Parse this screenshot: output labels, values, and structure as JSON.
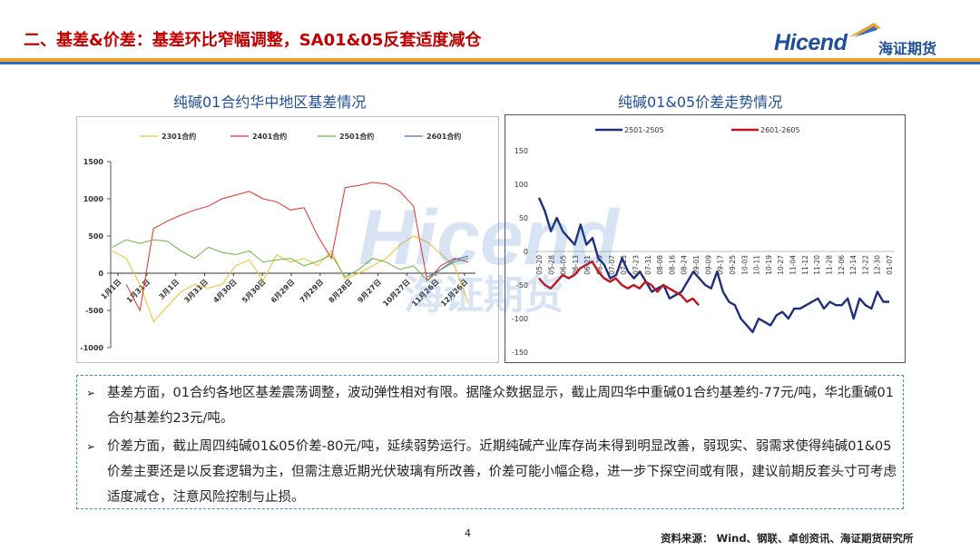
{
  "header": {
    "title": "二、基差&价差：基差环比窄幅调整，SA01&05反套适度减仓",
    "logo_en": "Hicend",
    "logo_cn": "海证期货"
  },
  "watermark": {
    "en": "Hicend",
    "cn": "海证期货"
  },
  "colors": {
    "accent_red": "#c00000",
    "brand_blue": "#1f4e9a",
    "stripe_orange": "#f0a030",
    "stripe_blue": "#2e6fc0"
  },
  "chart_data": [
    {
      "type": "line",
      "title": "纯碱01合约华中地区基差情况",
      "x_tick_labels": [
        "1月1日",
        "1月31日",
        "3月1日",
        "3月31日",
        "4月30日",
        "5月30日",
        "6月29日",
        "7月29日",
        "8月28日",
        "9月27日",
        "10月27日",
        "11月26日",
        "12月26日"
      ],
      "ylim": [
        -1000,
        1500
      ],
      "y_ticks": [
        "1500",
        "1000",
        "500",
        "0",
        "-500",
        "-1000"
      ],
      "legend_position": "top",
      "series": [
        {
          "name": "2301合约",
          "color": "#f2c12e",
          "values": [
            300,
            200,
            -150,
            -650,
            -450,
            -250,
            -150,
            -200,
            -150,
            100,
            180,
            -100,
            250,
            150,
            200,
            100,
            300,
            -80,
            0,
            100,
            200,
            380,
            500,
            420,
            260,
            100,
            -400
          ]
        },
        {
          "name": "2401合约",
          "color": "#e8302a",
          "values": [
            null,
            -150,
            -500,
            600,
            700,
            780,
            850,
            900,
            1000,
            1050,
            1100,
            1000,
            960,
            850,
            880,
            500,
            200,
            1150,
            1180,
            1220,
            1200,
            1100,
            900,
            -100,
            100,
            200,
            150
          ]
        },
        {
          "name": "2501合约",
          "color": "#6fb043",
          "values": [
            350,
            450,
            400,
            450,
            430,
            300,
            200,
            350,
            280,
            250,
            300,
            150,
            180,
            200,
            100,
            160,
            250,
            -50,
            50,
            200,
            150,
            50,
            100,
            -100,
            50,
            150,
            200
          ]
        },
        {
          "name": "2601合约",
          "color": "#3f70c0",
          "values": [
            null,
            null,
            null,
            null,
            null,
            null,
            null,
            null,
            null,
            null,
            null,
            null,
            null,
            null,
            null,
            null,
            null,
            null,
            null,
            null,
            null,
            null,
            null,
            -50,
            50,
            180,
            230
          ]
        }
      ]
    },
    {
      "type": "line",
      "title": "纯碱01&05价差走势情况",
      "x_tick_labels": [
        "05-20",
        "05-28",
        "06-05",
        "06-13",
        "06-21",
        "06-29",
        "07-07",
        "07-15",
        "07-23",
        "07-31",
        "08-08",
        "08-16",
        "08-24",
        "09-01",
        "09-09",
        "09-17",
        "09-25",
        "10-03",
        "10-11",
        "10-19",
        "10-27",
        "11-04",
        "11-12",
        "11-20",
        "11-28",
        "12-06",
        "12-14",
        "12-22",
        "12-30",
        "01-07"
      ],
      "ylim": [
        -150,
        150
      ],
      "y_ticks": [
        "150",
        "100",
        "50",
        "0",
        "-50",
        "-100",
        "-150"
      ],
      "legend_position": "top",
      "series": [
        {
          "name": "2501-2505",
          "color": "#1f2f7a",
          "values": [
            80,
            60,
            30,
            50,
            30,
            20,
            10,
            40,
            10,
            20,
            -10,
            -20,
            -40,
            -35,
            -10,
            -30,
            -40,
            -30,
            -45,
            -60,
            -55,
            -50,
            -70,
            -65,
            -60,
            -45,
            -30,
            -40,
            -50,
            -55,
            -30,
            -60,
            -75,
            -80,
            -100,
            -110,
            -120,
            -100,
            -105,
            -110,
            -95,
            -90,
            -100,
            -85,
            -85,
            -80,
            -75,
            -70,
            -85,
            -75,
            -80,
            -80,
            -70,
            -100,
            -70,
            -80,
            -85,
            -60,
            -75,
            -75
          ]
        },
        {
          "name": "2601-2605",
          "color": "#c0141e",
          "values": [
            -40,
            -50,
            -55,
            -45,
            -35,
            -40,
            -35,
            -25,
            -20,
            -15,
            -30,
            -40,
            -45,
            -40,
            -50,
            -55,
            -50,
            -55,
            -45,
            -50,
            -60,
            -50,
            -55,
            -60,
            -65,
            -75,
            -70,
            -80
          ]
        }
      ]
    }
  ],
  "bullets": [
    "基差方面，01合约各地区基差震荡调整，波动弹性相对有限。据隆众数据显示，截止周四华中重碱01合约基差约-77元/吨，华北重碱01合约基差约23元/吨。",
    "价差方面，截止周四纯碱01&05价差-80元/吨，延续弱势运行。近期纯碱产业库存尚未得到明显改善，弱现实、弱需求使得纯碱01&05价差主要还是以反套逻辑为主，但需注意近期光伏玻璃有所改善，价差可能小幅企稳，进一步下探空间或有限，建议前期反套头寸可考虑适度减仓，注意风险控制与止损。"
  ],
  "footer": {
    "page_number": "4",
    "source": "资料来源： Wind、钢联、卓创资讯、海证期货研究所"
  }
}
